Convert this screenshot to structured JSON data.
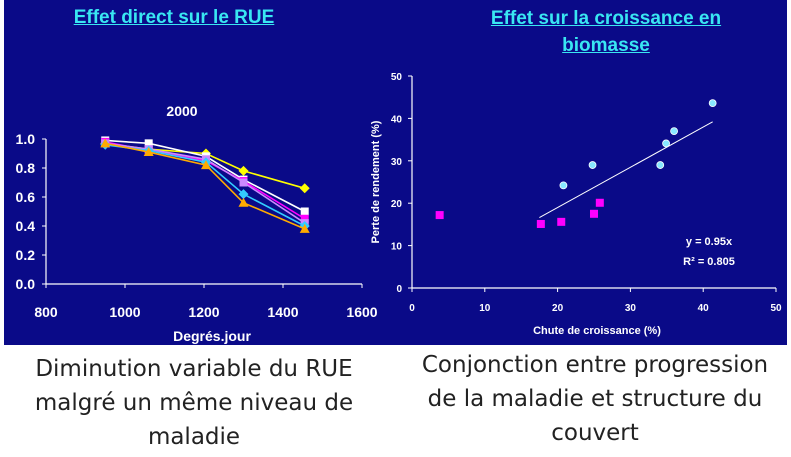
{
  "left_panel": {
    "title": "Effet direct sur le RUE",
    "caption": [
      "Diminution variable du RUE",
      "malgré un même niveau de",
      "maladie"
    ]
  },
  "right_panel": {
    "title": [
      "Effet sur la croissance en",
      "biomasse"
    ],
    "caption": [
      "Conjonction entre progression",
      "de la maladie et structure du",
      "couvert"
    ]
  },
  "colors": {
    "slide_bg": "#0a0a88",
    "title": "#39e6f2",
    "caption_text": "#222222"
  },
  "chart_data": [
    {
      "type": "line",
      "annotation": "2000",
      "xlabel": "Degrés.jour",
      "ylabel": "",
      "xlim": [
        800,
        1600
      ],
      "ylim": [
        0,
        1.0
      ],
      "xticks": [
        "800",
        "1000",
        "1200",
        "1400",
        "1600"
      ],
      "yticks": [
        "0.0",
        "0.2",
        "0.4",
        "0.6",
        "0.8",
        "1.0"
      ],
      "grid": false,
      "legend": "none",
      "series": [
        {
          "color": "#ffff00",
          "marker": "diamond",
          "x": [
            950,
            1060,
            1205,
            1300,
            1455
          ],
          "y": [
            0.97,
            0.93,
            0.9,
            0.78,
            0.66
          ]
        },
        {
          "color": "#ffffff",
          "marker": "square",
          "x": [
            950,
            1060,
            1205,
            1300,
            1455
          ],
          "y": [
            0.99,
            0.97,
            0.88,
            0.72,
            0.5
          ]
        },
        {
          "color": "#ff00ff",
          "marker": "square",
          "x": [
            950,
            1060,
            1205,
            1300,
            1455
          ],
          "y": [
            0.98,
            0.92,
            0.85,
            0.71,
            0.45
          ]
        },
        {
          "color": "#cc88ff",
          "marker": "square",
          "x": [
            950,
            1060,
            1205,
            1300,
            1455
          ],
          "y": [
            0.97,
            0.93,
            0.86,
            0.7,
            0.42
          ]
        },
        {
          "color": "#33ccff",
          "marker": "diamond",
          "x": [
            950,
            1060,
            1205,
            1300,
            1455
          ],
          "y": [
            0.96,
            0.92,
            0.84,
            0.62,
            0.4
          ]
        },
        {
          "color": "#ffaa00",
          "marker": "triangle",
          "x": [
            950,
            1060,
            1205,
            1300,
            1455
          ],
          "y": [
            0.97,
            0.91,
            0.82,
            0.56,
            0.38
          ]
        }
      ]
    },
    {
      "type": "scatter",
      "xlabel": "Chute de croissance (%)",
      "ylabel": "Perte de rendement (%)",
      "xlim": [
        0,
        50
      ],
      "ylim": [
        0,
        50
      ],
      "xticks": [
        "0",
        "10",
        "20",
        "30",
        "40",
        "50"
      ],
      "yticks": [
        "0",
        "10",
        "20",
        "30",
        "40",
        "50"
      ],
      "grid": false,
      "legend": "none",
      "annotation": [
        "y = 0.95x",
        "R² = 0.805"
      ],
      "series": [
        {
          "color": "#88e8ff",
          "marker": "circle",
          "x": [
            20.8,
            24.8,
            34.1,
            34.9,
            36.0,
            41.3
          ],
          "y": [
            24.2,
            29.0,
            29.0,
            34.1,
            37.0,
            43.6
          ]
        },
        {
          "color": "#ff00ff",
          "marker": "square",
          "x": [
            3.8,
            17.7,
            20.5,
            25.0,
            25.8
          ],
          "y": [
            17.2,
            15.1,
            15.6,
            17.5,
            20.1
          ]
        }
      ],
      "trendline": {
        "x": [
          17.5,
          41.3
        ],
        "y": [
          16.6,
          39.2
        ]
      }
    }
  ]
}
